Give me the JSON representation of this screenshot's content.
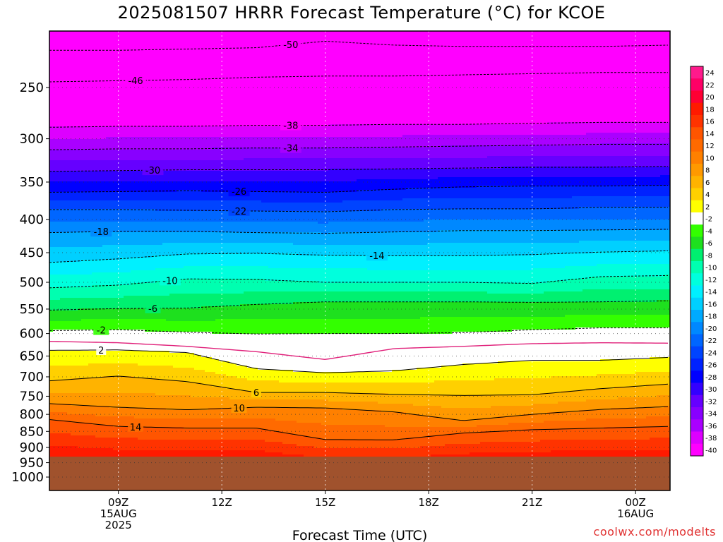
{
  "chart_data": {
    "type": "heatmap",
    "title": "2025081507 HRRR Forecast Temperature (°C) for KCOE",
    "xlabel": "Forecast Time (UTC)",
    "ylabel": "",
    "y_scale": "log-pressure",
    "y_axis_reversed": true,
    "ylim": [
      1000,
      200
    ],
    "xlim_hours": [
      7,
      25
    ],
    "x_ticks": [
      {
        "hour": 9,
        "lines": [
          "09Z",
          "15AUG",
          "2025"
        ]
      },
      {
        "hour": 12,
        "lines": [
          "12Z"
        ]
      },
      {
        "hour": 15,
        "lines": [
          "15Z"
        ]
      },
      {
        "hour": 18,
        "lines": [
          "18Z"
        ]
      },
      {
        "hour": 21,
        "lines": [
          "21Z"
        ]
      },
      {
        "hour": 24,
        "lines": [
          "00Z",
          "16AUG"
        ]
      }
    ],
    "y_ticks": [
      250,
      300,
      350,
      400,
      450,
      500,
      550,
      600,
      650,
      700,
      750,
      800,
      850,
      900,
      950,
      1000
    ],
    "colorbar": {
      "levels": [
        24,
        22,
        20,
        18,
        16,
        14,
        12,
        10,
        8,
        6,
        4,
        2,
        -2,
        -4,
        -6,
        -8,
        -10,
        -12,
        -14,
        -16,
        -18,
        -20,
        -22,
        -24,
        -26,
        -28,
        -30,
        -32,
        -34,
        -36,
        -38,
        -40
      ],
      "colors": [
        "#ff1a8c",
        "#ff0066",
        "#ff0033",
        "#ff1a00",
        "#ff3300",
        "#ff5500",
        "#ff6a00",
        "#ff8000",
        "#ff9900",
        "#ffb300",
        "#ffd000",
        "#ffff00",
        "#ffffff",
        "#33ff00",
        "#1ee01e",
        "#00f070",
        "#00ffb0",
        "#00ffdd",
        "#00f0ff",
        "#00d0ff",
        "#00aaff",
        "#0088ff",
        "#0066ff",
        "#0044ff",
        "#0022ff",
        "#0000ff",
        "#3300ff",
        "#6600ff",
        "#8800ff",
        "#aa00ff",
        "#dd00ff",
        "#ff00ff"
      ]
    },
    "time_hours": [
      7,
      9,
      11,
      13,
      15,
      17,
      19,
      21,
      23,
      25
    ],
    "isotherms": [
      {
        "level": -50,
        "label": "-50",
        "pressure": [
          219,
          219,
          218,
          217,
          212,
          215,
          216,
          216,
          216,
          215
        ]
      },
      {
        "level": -46,
        "label": "-46",
        "pressure": [
          245,
          244,
          243,
          241,
          240,
          240,
          239,
          238,
          237,
          237
        ]
      },
      {
        "level": -38,
        "label": "-38",
        "pressure": [
          288,
          287,
          287,
          286,
          286,
          285,
          285,
          284,
          283,
          283
        ]
      },
      {
        "level": -34,
        "label": "-34",
        "pressure": [
          312,
          311,
          311,
          310,
          310,
          309,
          308,
          307,
          306,
          306
        ]
      },
      {
        "level": -30,
        "label": "-30",
        "pressure": [
          337,
          336,
          335,
          335,
          335,
          334,
          333,
          332,
          332,
          331
        ]
      },
      {
        "level": -26,
        "label": "-26",
        "pressure": [
          363,
          362,
          361,
          362,
          363,
          359,
          356,
          355,
          355,
          354
        ]
      },
      {
        "level": -22,
        "label": "-22",
        "pressure": [
          386,
          386,
          387,
          388,
          389,
          386,
          385,
          385,
          383,
          383
        ]
      },
      {
        "level": -18,
        "label": "-18",
        "pressure": [
          419,
          417,
          417,
          419,
          420,
          418,
          416,
          416,
          415,
          414
        ]
      },
      {
        "level": -14,
        "label": "-14",
        "pressure": [
          466,
          460,
          452,
          451,
          454,
          455,
          455,
          453,
          449,
          447
        ]
      },
      {
        "level": -10,
        "label": "-10",
        "pressure": [
          510,
          505,
          494,
          495,
          500,
          500,
          500,
          502,
          490,
          488
        ]
      },
      {
        "level": -6,
        "label": "-6",
        "pressure": [
          552,
          549,
          548,
          541,
          536,
          536,
          536,
          537,
          536,
          534
        ]
      },
      {
        "level": -2,
        "label": "-2",
        "pressure": [
          594,
          592,
          597,
          601,
          600,
          600,
          598,
          592,
          588,
          588
        ]
      },
      {
        "level": 0,
        "label": "",
        "pressure": [
          617,
          620,
          628,
          640,
          658,
          633,
          628,
          622,
          620,
          621
        ]
      },
      {
        "level": 2,
        "label": "2",
        "pressure": [
          637,
          636,
          642,
          680,
          690,
          685,
          670,
          660,
          660,
          653
        ]
      },
      {
        "level": 6,
        "label": "6",
        "pressure": [
          710,
          698,
          712,
          740,
          740,
          745,
          748,
          746,
          730,
          718
        ]
      },
      {
        "level": 10,
        "label": "10",
        "pressure": [
          770,
          780,
          787,
          780,
          782,
          793,
          818,
          800,
          786,
          778
        ]
      },
      {
        "level": 14,
        "label": "14",
        "pressure": [
          815,
          835,
          840,
          840,
          875,
          876,
          855,
          845,
          840,
          835
        ]
      }
    ],
    "surface_pressure": 930,
    "ground_color": "#a0522d"
  },
  "site": "coolwx.com/modelts"
}
